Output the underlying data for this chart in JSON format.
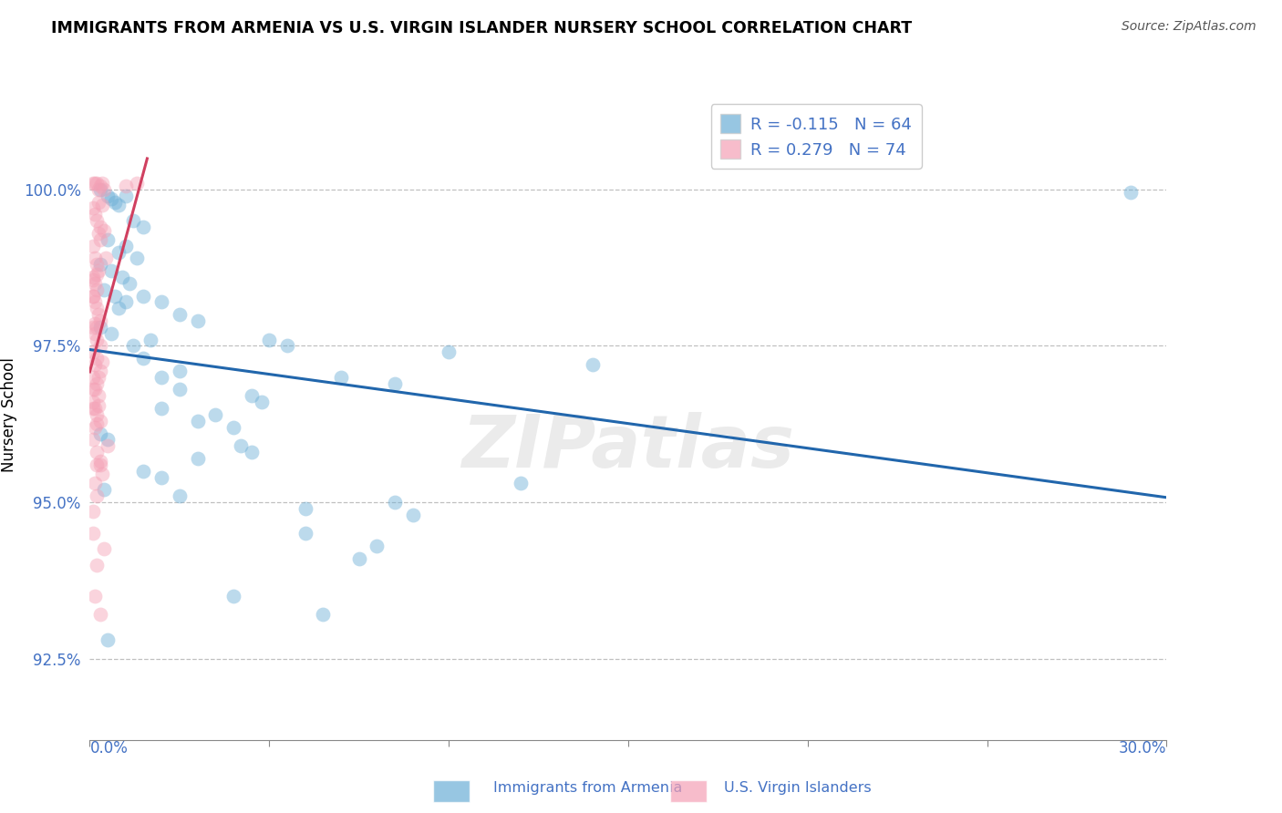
{
  "title": "IMMIGRANTS FROM ARMENIA VS U.S. VIRGIN ISLANDER NURSERY SCHOOL CORRELATION CHART",
  "source": "Source: ZipAtlas.com",
  "ylabel": "Nursery School",
  "xlim": [
    0.0,
    30.0
  ],
  "ylim": [
    91.2,
    101.6
  ],
  "yticks": [
    92.5,
    95.0,
    97.5,
    100.0
  ],
  "ytick_labels": [
    "92.5%",
    "95.0%",
    "97.5%",
    "100.0%"
  ],
  "watermark": "ZIPatlas",
  "legend_blue_r": "R = -0.115",
  "legend_blue_n": "N = 64",
  "legend_pink_r": "R = 0.279",
  "legend_pink_n": "N = 74",
  "blue_color": "#6baed6",
  "pink_color": "#f4a0b5",
  "trendline_blue_color": "#2166ac",
  "trendline_pink_color": "#d04060",
  "blue_scatter_x": [
    0.3,
    0.5,
    0.6,
    0.7,
    0.8,
    1.0,
    1.2,
    1.5,
    0.5,
    0.8,
    1.0,
    1.3,
    0.3,
    0.6,
    0.9,
    1.1,
    0.4,
    0.7,
    1.0,
    1.5,
    2.0,
    2.5,
    3.0,
    0.3,
    0.6,
    1.2,
    5.0,
    5.5,
    10.0,
    14.0,
    7.0,
    8.5,
    2.5,
    2.0,
    4.5,
    4.8,
    2.0,
    3.0,
    4.0,
    0.3,
    0.5,
    3.0,
    4.5,
    1.5,
    2.0,
    0.4,
    2.5,
    8.5,
    9.0,
    6.0,
    8.0,
    4.0,
    6.5,
    0.5,
    29.0,
    1.5,
    2.5,
    0.8,
    1.7,
    3.5,
    4.2,
    6.0,
    7.5,
    12.0
  ],
  "blue_scatter_y": [
    100.0,
    99.9,
    99.85,
    99.8,
    99.75,
    99.9,
    99.5,
    99.4,
    99.2,
    99.0,
    99.1,
    98.9,
    98.8,
    98.7,
    98.6,
    98.5,
    98.4,
    98.3,
    98.2,
    98.3,
    98.2,
    98.0,
    97.9,
    97.8,
    97.7,
    97.5,
    97.6,
    97.5,
    97.4,
    97.2,
    97.0,
    96.9,
    97.1,
    97.0,
    96.7,
    96.6,
    96.5,
    96.3,
    96.2,
    96.1,
    96.0,
    95.7,
    95.8,
    95.5,
    95.4,
    95.2,
    95.1,
    95.0,
    94.8,
    94.5,
    94.3,
    93.5,
    93.2,
    92.8,
    99.95,
    97.3,
    96.8,
    98.1,
    97.6,
    96.4,
    95.9,
    94.9,
    94.1,
    95.3
  ],
  "pink_scatter_x": [
    0.1,
    0.15,
    0.2,
    0.25,
    0.3,
    0.35,
    0.4,
    0.1,
    0.15,
    0.2,
    0.25,
    0.3,
    0.1,
    0.15,
    0.2,
    0.25,
    0.1,
    0.15,
    0.2,
    0.1,
    0.15,
    0.2,
    0.25,
    0.3,
    0.1,
    0.15,
    0.2,
    0.3,
    0.1,
    0.2,
    0.15,
    0.3,
    0.1,
    0.2,
    0.15,
    0.25,
    0.1,
    0.2,
    0.3,
    0.15,
    0.5,
    0.1,
    0.2,
    0.15,
    0.1,
    0.2,
    0.25,
    0.35,
    0.3,
    0.4,
    0.45,
    0.1,
    0.2,
    0.15,
    0.3,
    0.25,
    0.1,
    0.2,
    0.15,
    0.3,
    0.1,
    0.2,
    0.35,
    1.0,
    1.3,
    0.1,
    0.2,
    0.3,
    0.1,
    0.15,
    0.2,
    0.25,
    0.35,
    0.4
  ],
  "pink_scatter_y": [
    100.1,
    100.1,
    100.1,
    100.0,
    100.05,
    100.1,
    100.0,
    99.7,
    99.6,
    99.5,
    99.3,
    99.2,
    99.1,
    98.9,
    98.8,
    98.7,
    98.6,
    98.5,
    98.4,
    98.3,
    98.2,
    98.1,
    98.0,
    97.9,
    97.8,
    97.7,
    97.6,
    97.5,
    97.4,
    97.3,
    97.2,
    97.1,
    97.0,
    96.9,
    96.8,
    96.7,
    96.6,
    96.4,
    96.3,
    96.2,
    95.9,
    96.0,
    95.8,
    95.3,
    94.5,
    94.0,
    99.8,
    99.75,
    99.4,
    99.35,
    98.9,
    96.5,
    95.6,
    93.5,
    93.2,
    97.0,
    98.3,
    97.8,
    96.5,
    95.6,
    96.8,
    95.1,
    97.25,
    100.05,
    100.1,
    98.55,
    96.25,
    95.65,
    94.85,
    97.85,
    98.65,
    96.55,
    95.45,
    94.25
  ]
}
